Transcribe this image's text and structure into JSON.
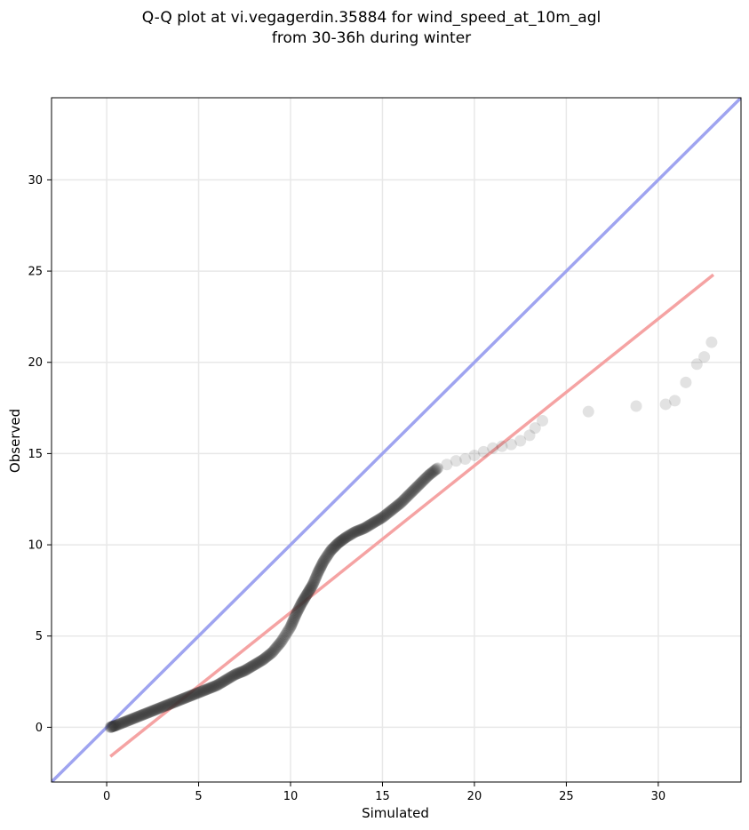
{
  "chart_data": {
    "type": "scatter",
    "title": "Q-Q plot at vi.vegagerdin.35884 for wind_speed_at_10m_agl",
    "subtitle": "from 30-36h during winter",
    "xlabel": "Simulated",
    "ylabel": "Observed",
    "xlim": [
      -3,
      34.5
    ],
    "ylim": [
      -3,
      34.5
    ],
    "x_ticks": [
      0,
      5,
      10,
      15,
      20,
      25,
      30
    ],
    "y_ticks": [
      0,
      5,
      10,
      15,
      20,
      25,
      30
    ],
    "x_tick_labels": [
      "0",
      "5",
      "10",
      "15",
      "20",
      "25",
      "30"
    ],
    "y_tick_labels": [
      "0",
      "5",
      "10",
      "15",
      "20",
      "25",
      "30"
    ],
    "grid": true,
    "colors": {
      "points": "#333333",
      "identity_line": "#9fa4f0",
      "fit_line": "#f5a3a3",
      "grid": "#e8e8e8"
    },
    "lines": [
      {
        "kind": "identity",
        "x": [
          -3,
          34.5
        ],
        "y": [
          -3,
          34.5
        ]
      },
      {
        "kind": "fit",
        "x": [
          0.2,
          33.0
        ],
        "y": [
          -1.6,
          24.8
        ]
      }
    ],
    "quantile_curve": {
      "x": [
        0.2,
        0.5,
        1,
        1.5,
        2,
        2.5,
        3,
        3.5,
        4,
        4.5,
        5,
        5.5,
        6,
        6.5,
        7,
        7.5,
        8,
        8.5,
        9,
        9.5,
        10,
        10.3,
        10.6,
        10.9,
        11.2,
        11.5,
        11.8,
        12.2,
        12.6,
        13,
        13.5,
        14,
        14.5,
        15,
        15.5,
        16,
        16.5,
        17,
        17.5,
        18
      ],
      "y": [
        0,
        0.1,
        0.3,
        0.5,
        0.7,
        0.9,
        1.1,
        1.3,
        1.5,
        1.7,
        1.9,
        2.1,
        2.3,
        2.6,
        2.9,
        3.1,
        3.4,
        3.7,
        4.1,
        4.7,
        5.5,
        6.2,
        6.8,
        7.3,
        7.8,
        8.5,
        9.1,
        9.7,
        10.1,
        10.4,
        10.7,
        10.9,
        11.2,
        11.5,
        11.9,
        12.3,
        12.8,
        13.3,
        13.8,
        14.2
      ]
    },
    "tail_points": {
      "x": [
        18.5,
        19,
        19.5,
        20,
        20.5,
        21,
        21.5,
        22,
        22.5,
        23,
        23.3,
        23.7,
        26.2,
        28.8,
        30.4,
        30.9,
        31.5,
        32.1,
        32.5,
        32.9
      ],
      "y": [
        14.4,
        14.6,
        14.7,
        14.9,
        15.1,
        15.3,
        15.4,
        15.5,
        15.7,
        16.0,
        16.4,
        16.8,
        17.3,
        17.6,
        17.7,
        17.9,
        18.9,
        19.9,
        20.3,
        21.1
      ]
    }
  }
}
